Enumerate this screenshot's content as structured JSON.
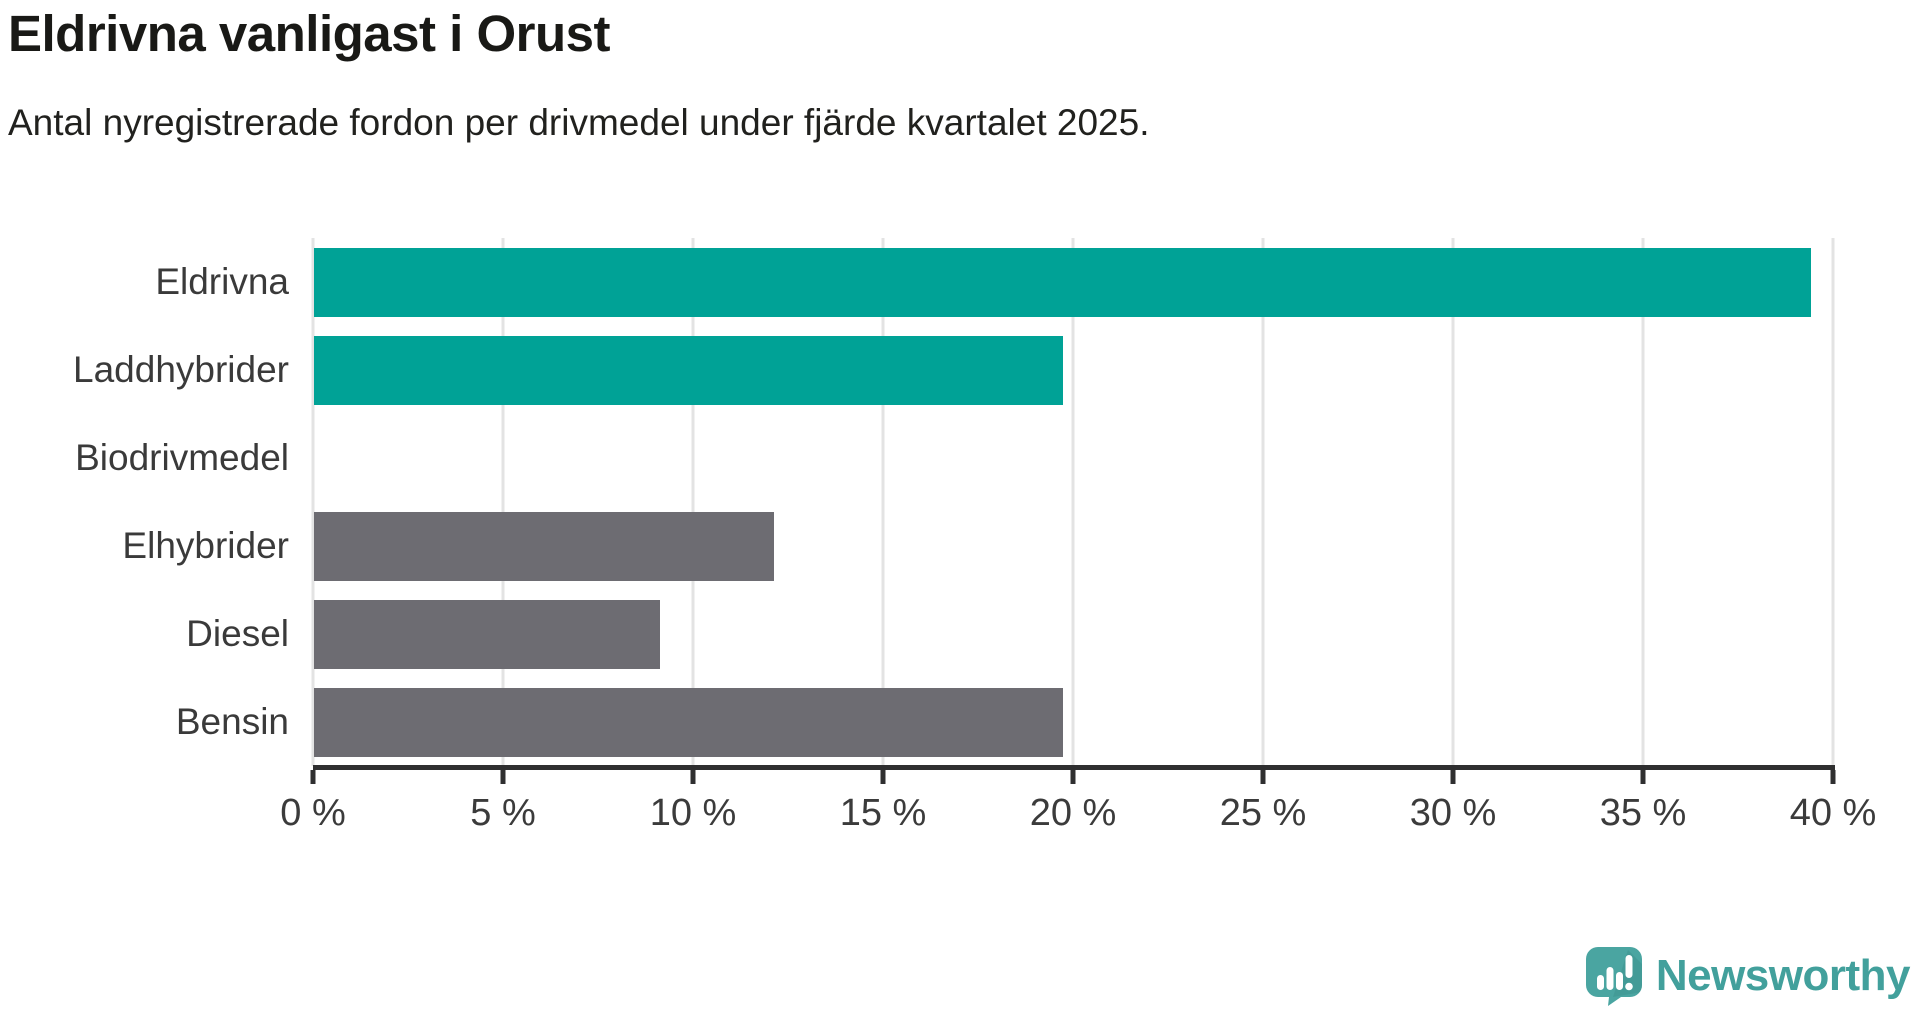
{
  "chart_data": {
    "type": "bar",
    "orientation": "horizontal",
    "title": "Eldrivna vanligast i Orust",
    "subtitle": "Antal nyregistrerade fordon per drivmedel under fjärde kvartalet 2025.",
    "categories": [
      "Eldrivna",
      "Laddhybrider",
      "Biodrivmedel",
      "Elhybrider",
      "Diesel",
      "Bensin"
    ],
    "values": [
      39.4,
      19.7,
      0,
      12.1,
      9.1,
      19.7
    ],
    "unit": "%",
    "bar_colors": [
      "#00a296",
      "#00a296",
      "#00a296",
      "#6d6c72",
      "#6d6c72",
      "#6d6c72"
    ],
    "highlight_color": "#00a296",
    "default_color": "#6d6c72",
    "xlim": [
      0,
      40
    ],
    "x_ticks": [
      0,
      5,
      10,
      15,
      20,
      25,
      30,
      35,
      40
    ],
    "x_tick_labels": [
      "0 %",
      "5 %",
      "10 %",
      "15 %",
      "20 %",
      "25 %",
      "30 %",
      "35 %",
      "40 %"
    ],
    "grid": "vertical-only",
    "gridline_color": "#e3e3e3",
    "axis_color": "#2f2f30"
  },
  "branding": {
    "logo_text": "Newsworthy",
    "logo_color": "#42a09c",
    "logo_icon": "speech-bubble-bar-chart-icon",
    "logo_icon_color": "#4aa5a1"
  }
}
